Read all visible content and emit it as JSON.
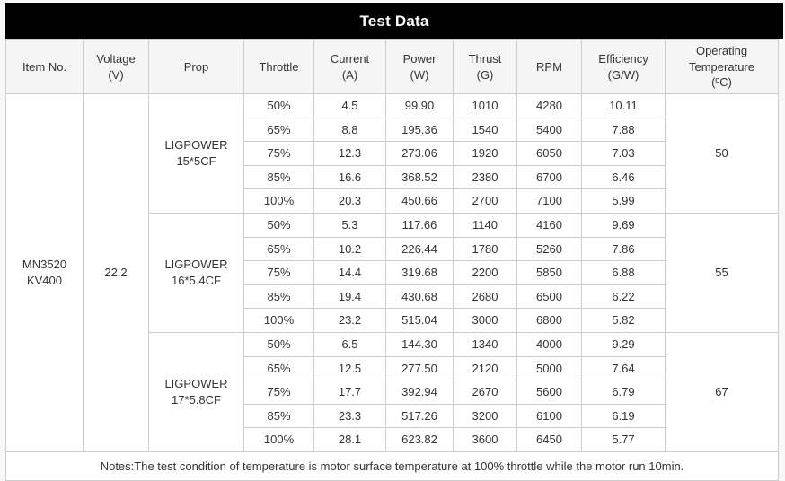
{
  "title": "Test Data",
  "columns": [
    "Item No.",
    "Voltage\n(V)",
    "Prop",
    "Throttle",
    "Current\n(A)",
    "Power\n(W)",
    "Thrust\n(G)",
    "RPM",
    "Efficiency\n(G/W)",
    "Operating\nTemperature\n(ºC)"
  ],
  "item_no": "MN3520\nKV400",
  "voltage": "22.2",
  "groups": [
    {
      "prop": "LIGPOWER\n15*5CF",
      "temperature": "50",
      "rows": [
        {
          "throttle": "50%",
          "current": "4.5",
          "power": "99.90",
          "thrust": "1010",
          "rpm": "4280",
          "efficiency": "10.11"
        },
        {
          "throttle": "65%",
          "current": "8.8",
          "power": "195.36",
          "thrust": "1540",
          "rpm": "5400",
          "efficiency": "7.88"
        },
        {
          "throttle": "75%",
          "current": "12.3",
          "power": "273.06",
          "thrust": "1920",
          "rpm": "6050",
          "efficiency": "7.03"
        },
        {
          "throttle": "85%",
          "current": "16.6",
          "power": "368.52",
          "thrust": "2380",
          "rpm": "6700",
          "efficiency": "6.46"
        },
        {
          "throttle": "100%",
          "current": "20.3",
          "power": "450.66",
          "thrust": "2700",
          "rpm": "7100",
          "efficiency": "5.99"
        }
      ]
    },
    {
      "prop": "LIGPOWER\n16*5.4CF",
      "temperature": "55",
      "rows": [
        {
          "throttle": "50%",
          "current": "5.3",
          "power": "117.66",
          "thrust": "1140",
          "rpm": "4160",
          "efficiency": "9.69"
        },
        {
          "throttle": "65%",
          "current": "10.2",
          "power": "226.44",
          "thrust": "1780",
          "rpm": "5260",
          "efficiency": "7.86"
        },
        {
          "throttle": "75%",
          "current": "14.4",
          "power": "319.68",
          "thrust": "2200",
          "rpm": "5850",
          "efficiency": "6.88"
        },
        {
          "throttle": "85%",
          "current": "19.4",
          "power": "430.68",
          "thrust": "2680",
          "rpm": "6500",
          "efficiency": "6.22"
        },
        {
          "throttle": "100%",
          "current": "23.2",
          "power": "515.04",
          "thrust": "3000",
          "rpm": "6800",
          "efficiency": "5.82"
        }
      ]
    },
    {
      "prop": "LIGPOWER\n17*5.8CF",
      "temperature": "67",
      "rows": [
        {
          "throttle": "50%",
          "current": "6.5",
          "power": "144.30",
          "thrust": "1340",
          "rpm": "4000",
          "efficiency": "9.29"
        },
        {
          "throttle": "65%",
          "current": "12.5",
          "power": "277.50",
          "thrust": "2120",
          "rpm": "5000",
          "efficiency": "7.64"
        },
        {
          "throttle": "75%",
          "current": "17.7",
          "power": "392.94",
          "thrust": "2670",
          "rpm": "5600",
          "efficiency": "6.79"
        },
        {
          "throttle": "85%",
          "current": "23.3",
          "power": "517.26",
          "thrust": "3200",
          "rpm": "6100",
          "efficiency": "6.19"
        },
        {
          "throttle": "100%",
          "current": "28.1",
          "power": "623.82",
          "thrust": "3600",
          "rpm": "6450",
          "efficiency": "5.77"
        }
      ]
    }
  ],
  "notes": "Notes:The test condition of temperature is motor surface temperature at 100% throttle while the motor run 10min.",
  "colors": {
    "title_bg": "#000000",
    "title_text": "#ffffff",
    "header_bg": "#f5f5f5",
    "border": "#cccccc",
    "text": "#333333",
    "page_bg": "#f7f8f9"
  }
}
